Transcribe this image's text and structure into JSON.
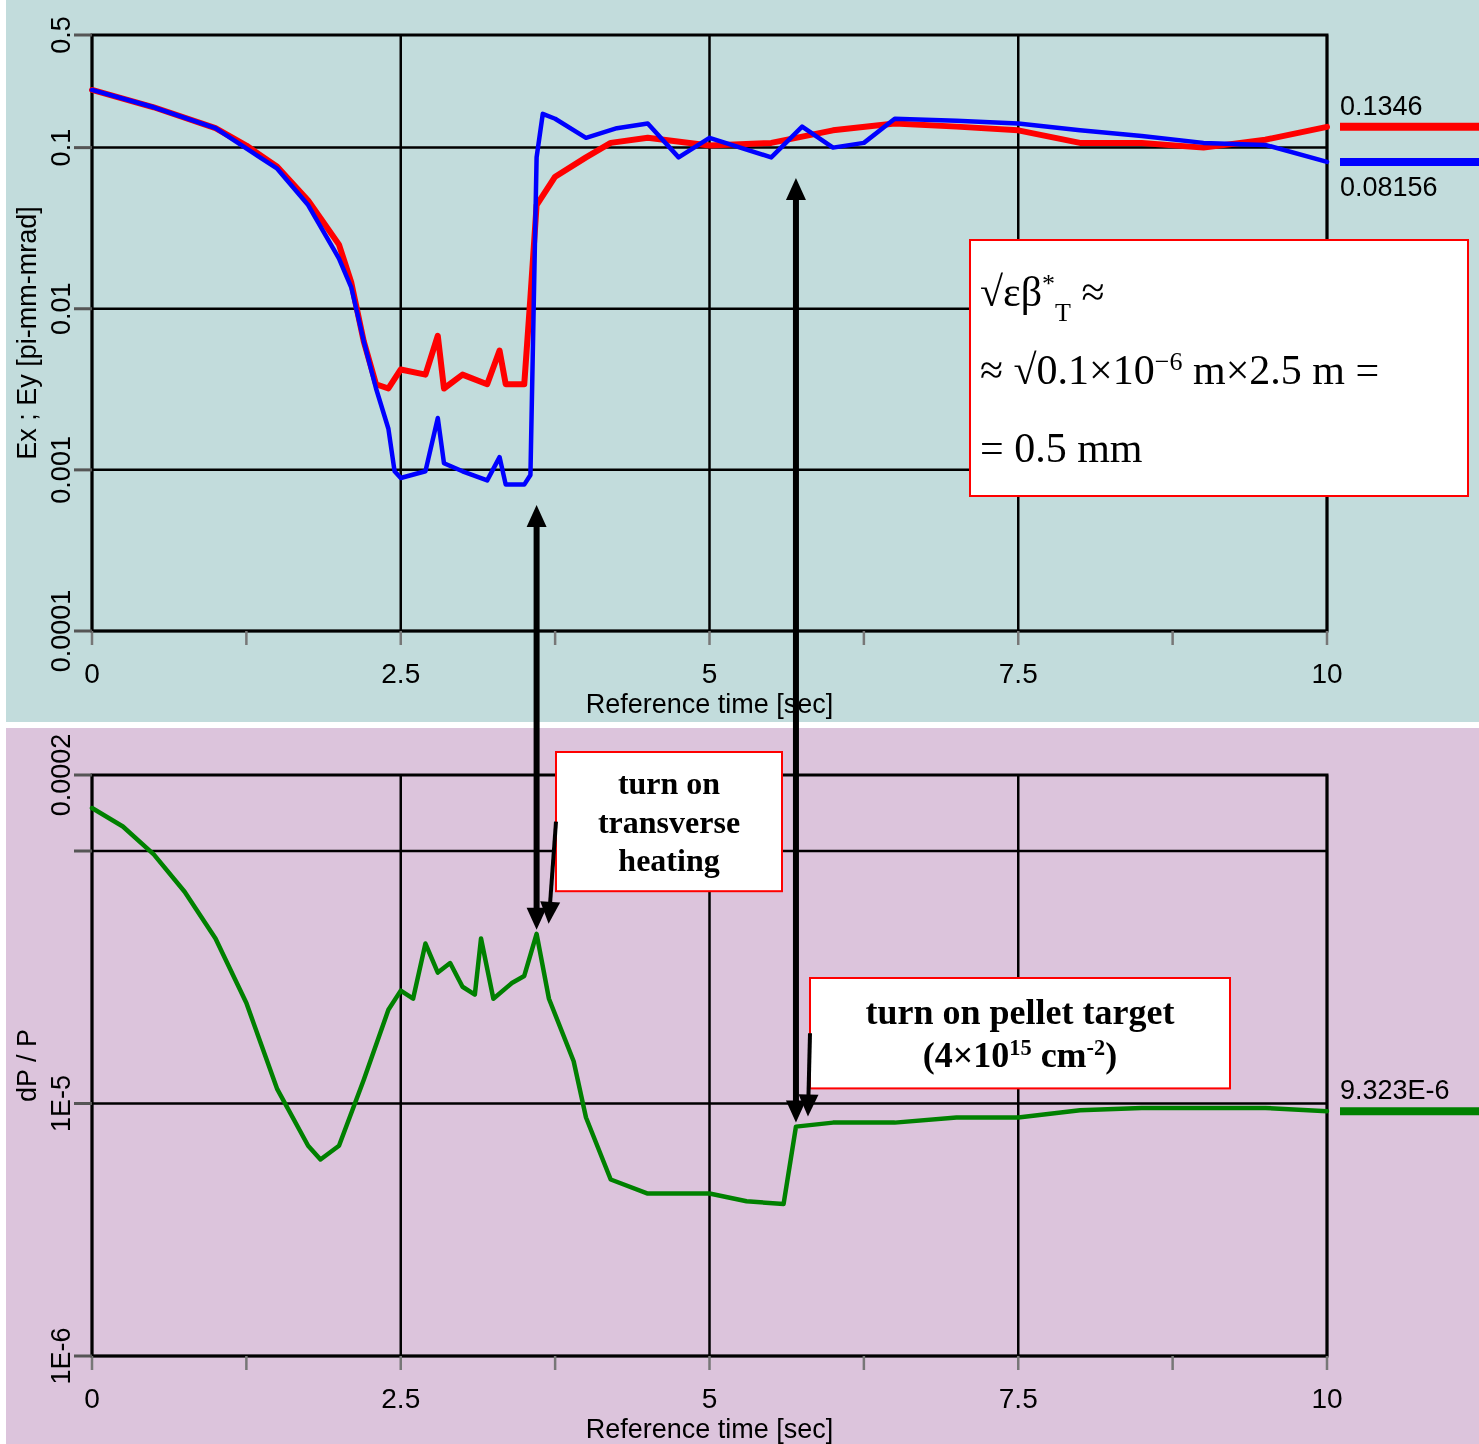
{
  "chart_data": [
    {
      "type": "line",
      "log": "y",
      "grid": true,
      "xlabel": "Reference time [sec]",
      "ylabel": "Ex ; Ey [pi-mm-mrad]",
      "line_style": "solid",
      "xlim": [
        0,
        10
      ],
      "xticks": [
        0,
        {
          "value": 1.25,
          "label": null
        },
        2.5,
        {
          "value": 3.75,
          "label": null
        },
        5,
        {
          "value": 6.25,
          "label": null
        },
        7.5,
        {
          "value": 8.75,
          "label": null
        },
        10
      ],
      "ylim": [
        0.0001,
        0.5
      ],
      "yticks": [
        0.0001,
        0.001,
        0.01,
        0.1,
        0.5
      ],
      "annotations": [
        "√εβ$^{*}$$_{T}$ ≈",
        "≈ √0.1×10$^{−6}$ m×2.5 m =",
        "= 0.5 mm"
      ],
      "series": [
        {
          "color": "#ff0000",
          "x": [
            0,
            0.5,
            1,
            1.25,
            1.5,
            1.75,
            2,
            2.1,
            2.2,
            2.3,
            2.4,
            2.5,
            2.7,
            2.8,
            2.85,
            3,
            3.2,
            3.3,
            3.35,
            3.5,
            3.55,
            3.6,
            3.75,
            4,
            4.2,
            4.5,
            5,
            5.5,
            6,
            6.5,
            7,
            7.5,
            8,
            8.5,
            9,
            9.5,
            10
          ],
          "values": [
            0.228,
            0.178,
            0.132,
            0.103,
            0.076,
            0.047,
            0.025,
            0.0145,
            0.0063,
            0.0034,
            0.0032,
            0.0042,
            0.0039,
            0.0068,
            0.0032,
            0.0039,
            0.0034,
            0.0055,
            0.0034,
            0.0034,
            0.0118,
            0.044,
            0.066,
            0.087,
            0.107,
            0.115,
            0.103,
            0.107,
            0.128,
            0.141,
            0.135,
            0.128,
            0.107,
            0.107,
            0.1,
            0.112,
            0.1346
          ],
          "value_labels": [
            null,
            null,
            null,
            null,
            null,
            null,
            null,
            null,
            null,
            null,
            null,
            null,
            null,
            null,
            null,
            null,
            null,
            null,
            null,
            null,
            null,
            null,
            null,
            null,
            null,
            null,
            null,
            null,
            null,
            null,
            null,
            null,
            null,
            null,
            null,
            null,
            "0.1346"
          ]
        },
        {
          "color": "#0000ff",
          "x": [
            0,
            0.5,
            1,
            1.5,
            1.75,
            2,
            2.1,
            2.2,
            2.3,
            2.4,
            2.45,
            2.5,
            2.7,
            2.8,
            2.85,
            3,
            3.2,
            3.3,
            3.35,
            3.5,
            3.55,
            3.6,
            3.65,
            3.75,
            4,
            4.25,
            4.5,
            4.75,
            5,
            5.5,
            5.75,
            6,
            6.25,
            6.5,
            7,
            7.5,
            8,
            8.5,
            9,
            9.5,
            10
          ],
          "values": [
            0.228,
            0.178,
            0.132,
            0.074,
            0.044,
            0.0205,
            0.0135,
            0.0063,
            0.0032,
            0.0018,
            0.00098,
            0.00089,
            0.00098,
            0.0021,
            0.0011,
            0.00098,
            0.00086,
            0.0012,
            0.00081,
            0.00081,
            0.00093,
            0.087,
            0.162,
            0.151,
            0.115,
            0.132,
            0.141,
            0.087,
            0.115,
            0.087,
            0.135,
            0.1,
            0.107,
            0.151,
            0.147,
            0.141,
            0.128,
            0.118,
            0.107,
            0.104,
            0.08156
          ],
          "value_labels": [
            null,
            null,
            null,
            null,
            null,
            null,
            null,
            null,
            null,
            null,
            null,
            null,
            null,
            null,
            null,
            null,
            null,
            null,
            null,
            null,
            null,
            null,
            null,
            null,
            null,
            null,
            null,
            null,
            null,
            null,
            null,
            null,
            null,
            null,
            null,
            null,
            null,
            null,
            null,
            null,
            "0.08156"
          ]
        }
      ]
    },
    {
      "type": "line",
      "log": "y",
      "grid": true,
      "xlabel": "Reference time [sec]",
      "ylabel": "dP / P",
      "line_style": "solid",
      "xlim": [
        0,
        10
      ],
      "xticks": [
        0,
        {
          "value": 1.25,
          "label": null
        },
        2.5,
        {
          "value": 3.75,
          "label": null
        },
        5,
        {
          "value": 6.25,
          "label": null
        },
        7.5,
        {
          "value": 8.75,
          "label": null
        },
        10
      ],
      "ylim": [
        1e-06,
        0.0002
      ],
      "yticks": [
        {
          "value": 1e-06,
          "label": "1E-6"
        },
        {
          "value": 1e-05,
          "label": "1E-5"
        },
        {
          "value": 0.0001,
          "label": null
        },
        {
          "value": 0.0002,
          "label": "0.0002"
        }
      ],
      "annotations": [
        {
          "text": "turn on transverse heating",
          "x": 3.6,
          "y": 4.7e-05
        },
        {
          "text": "turn on pellet target (4×10$^{15}$ cm$^{-2}$)",
          "x": 5.7,
          "y": 8.1e-06
        }
      ],
      "series": [
        {
          "color": "#008000",
          "x": [
            0,
            0.25,
            0.5,
            0.75,
            1,
            1.25,
            1.5,
            1.75,
            1.85,
            2,
            2.2,
            2.4,
            2.5,
            2.6,
            2.7,
            2.8,
            2.9,
            3,
            3.1,
            3.15,
            3.25,
            3.4,
            3.5,
            3.6,
            3.7,
            3.9,
            4,
            4.2,
            4.5,
            5,
            5.3,
            5.6,
            5.7,
            6,
            6.5,
            7,
            7.5,
            8,
            8.5,
            9,
            9.5,
            10
          ],
          "values": [
            0.000148,
            0.000125,
            9.7e-05,
            6.9e-05,
            4.5e-05,
            2.5e-05,
            1.14e-05,
            6.8e-06,
            6e-06,
            6.8e-06,
            1.24e-05,
            2.35e-05,
            2.8e-05,
            2.6e-05,
            4.3e-05,
            3.3e-05,
            3.6e-05,
            2.9e-05,
            2.7e-05,
            4.5e-05,
            2.6e-05,
            3e-05,
            3.2e-05,
            4.7e-05,
            2.6e-05,
            1.47e-05,
            8.8e-06,
            5e-06,
            4.4e-06,
            4.4e-06,
            4.1e-06,
            4e-06,
            8.1e-06,
            8.4e-06,
            8.4e-06,
            8.8e-06,
            8.8e-06,
            9.4e-06,
            9.6e-06,
            9.6e-06,
            9.6e-06,
            9.323e-06
          ],
          "value_labels": [
            null,
            null,
            null,
            null,
            null,
            null,
            null,
            null,
            null,
            null,
            null,
            null,
            null,
            null,
            null,
            null,
            null,
            null,
            null,
            null,
            null,
            null,
            null,
            null,
            null,
            null,
            null,
            null,
            null,
            null,
            null,
            null,
            null,
            null,
            null,
            null,
            null,
            null,
            null,
            null,
            null,
            "9.323E-6"
          ]
        }
      ]
    }
  ]
}
